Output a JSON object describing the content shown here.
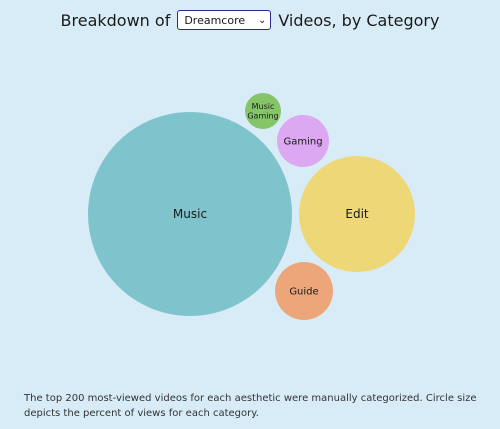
{
  "header": {
    "prefix": "Breakdown of",
    "selected_aesthetic": "Dreamcore",
    "suffix": "Videos, by Category"
  },
  "chart_data": {
    "type": "bubble",
    "categories": [
      {
        "name": "Music",
        "color": "#7fc4cc"
      },
      {
        "name": "Edit",
        "color": "#eed776"
      },
      {
        "name": "Gaming",
        "color": "#dba8f1"
      },
      {
        "name": "Guide",
        "color": "#eca679"
      },
      {
        "name": "Music Gaming",
        "color": "#86c46a"
      }
    ]
  },
  "footnote": "The top 200 most-viewed videos for each aesthetic were manually categorized. Circle size depicts the percent of views for each category."
}
